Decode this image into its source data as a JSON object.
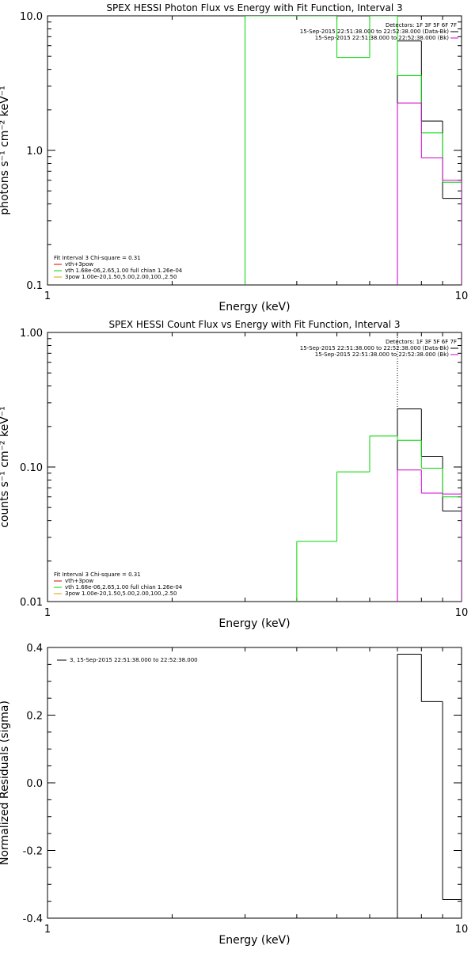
{
  "colors": {
    "background": "#ffffff",
    "axes": "#000000",
    "black": "#000000",
    "green": "#00d800",
    "magenta": "#d400d4",
    "red": "#e00000",
    "orange": "#d8a000"
  },
  "chart_data": [
    {
      "type": "line",
      "title": "SPEX HESSI Photon Flux vs Energy with Fit Function, Interval 3",
      "xlabel": "Energy (keV)",
      "ylabel": "photons s⁻¹ cm⁻² keV⁻¹",
      "xscale": "log",
      "yscale": "log",
      "xlim": [
        1,
        10
      ],
      "ylim": [
        0.1,
        10
      ],
      "x_ticks": [
        {
          "v": 1,
          "label": "1"
        },
        {
          "v": 10,
          "label": "10"
        }
      ],
      "y_ticks": [
        {
          "v": 0.1,
          "label": "0.1"
        },
        {
          "v": 1,
          "label": "1.0"
        },
        {
          "v": 10,
          "label": "10.0"
        }
      ],
      "vline": 7.0,
      "series": [
        {
          "name": "15-Sep-2015 22:51:38.000 to 22:52:38.000 (Data-Bk)",
          "color": "black",
          "edges": [
            7.0,
            8.0,
            9.0,
            10.0
          ],
          "values": [
            6.5,
            1.65,
            0.44
          ]
        },
        {
          "name": "vth 1.68e-06,2.65,1.00  full chian 1.26e-04",
          "color": "green",
          "edges": [
            3.0,
            4.0,
            5.0,
            6.0,
            7.0,
            8.0,
            9.0,
            10.0
          ],
          "values": [
            10.0,
            10.0,
            4.9,
            10.0,
            3.6,
            1.35,
            0.58
          ]
        },
        {
          "name": "15-Sep-2015 22:51:38.000 to 22:52:38.000 (Bk)",
          "color": "magenta",
          "edges": [
            7.0,
            8.0,
            9.0,
            10.0
          ],
          "values": [
            2.25,
            0.88,
            0.6
          ]
        }
      ],
      "legend_topright": {
        "header": "Detectors: 1F 3F 5F 6F 7F",
        "entries": [
          {
            "text": "15-Sep-2015 22:51:38.000 to 22:52:38.000 (Data-Bk)",
            "color": "black"
          },
          {
            "text": "15-Sep-2015 22:51:38.000 to 22:52:38.000 (Bk)",
            "color": "magenta"
          }
        ]
      },
      "legend_bottomleft": {
        "header": "Fit Interval 3   Chi-square = 0.31",
        "entries": [
          {
            "text": "vth+3pow",
            "color": "red"
          },
          {
            "text": "vth 1.68e-06,2.65,1.00  full chian 1.26e-04",
            "color": "green"
          },
          {
            "text": "3pow 1.00e-20,1.50,5.00,2.00,100.,2.50",
            "color": "orange"
          }
        ]
      }
    },
    {
      "type": "line",
      "title": "SPEX HESSI Count Flux vs Energy with Fit Function, Interval 3",
      "xlabel": "Energy (keV)",
      "ylabel": "counts s⁻¹ cm⁻² keV⁻¹",
      "xscale": "log",
      "yscale": "log",
      "xlim": [
        1,
        10
      ],
      "ylim": [
        0.01,
        1
      ],
      "x_ticks": [
        {
          "v": 1,
          "label": "1"
        },
        {
          "v": 10,
          "label": "10"
        }
      ],
      "y_ticks": [
        {
          "v": 0.01,
          "label": "0.01"
        },
        {
          "v": 0.1,
          "label": "0.10"
        },
        {
          "v": 1,
          "label": "1.00"
        }
      ],
      "vline": 7.0,
      "series": [
        {
          "name": "15-Sep-2015 22:51:38.000 to 22:52:38.000 (Data-Bk)",
          "color": "black",
          "edges": [
            7.0,
            8.0,
            9.0,
            10.0
          ],
          "values": [
            0.27,
            0.12,
            0.047
          ]
        },
        {
          "name": "vth 1.68e-06,2.65,1.00  full chian 1.26e-04",
          "color": "green",
          "edges": [
            4.0,
            5.0,
            6.0,
            7.0,
            8.0,
            9.0,
            10.0
          ],
          "values": [
            0.028,
            0.092,
            0.17,
            0.158,
            0.098,
            0.06
          ]
        },
        {
          "name": "15-Sep-2015 22:51:38.000 to 22:52:38.000 (Bk)",
          "color": "magenta",
          "edges": [
            7.0,
            8.0,
            9.0,
            10.0
          ],
          "values": [
            0.095,
            0.064,
            0.063
          ]
        }
      ],
      "legend_topright": {
        "header": "Detectors: 1F 3F 5F 6F 7F",
        "entries": [
          {
            "text": "15-Sep-2015 22:51:38.000 to 22:52:38.000 (Data-Bk)",
            "color": "black"
          },
          {
            "text": "15-Sep-2015 22:51:38.000 to 22:52:38.000 (Bk)",
            "color": "magenta"
          }
        ]
      },
      "legend_bottomleft": {
        "header": "Fit Interval 3   Chi-square = 0.31",
        "entries": [
          {
            "text": "vth+3pow",
            "color": "red"
          },
          {
            "text": "vth 1.68e-06,2.65,1.00  full chian 1.26e-04",
            "color": "green"
          },
          {
            "text": "3pow 1.00e-20,1.50,5.00,2.00,100.,2.50",
            "color": "orange"
          }
        ]
      }
    },
    {
      "type": "line",
      "title": "",
      "xlabel": "Energy (keV)",
      "ylabel": "Normalized Residuals (sigma)",
      "xscale": "log",
      "yscale": "linear",
      "xlim": [
        1,
        10
      ],
      "ylim": [
        -0.4,
        0.4
      ],
      "x_ticks": [
        {
          "v": 1,
          "label": "1"
        },
        {
          "v": 10,
          "label": "10"
        }
      ],
      "y_ticks": [
        {
          "v": -0.4,
          "label": "-0.4"
        },
        {
          "v": -0.2,
          "label": "-0.2"
        },
        {
          "v": 0,
          "label": "0.0"
        },
        {
          "v": 0.2,
          "label": "0.2"
        },
        {
          "v": 0.4,
          "label": "0.4"
        }
      ],
      "vline": null,
      "series": [
        {
          "name": "3, 15-Sep-2015 22:51:38.000 to 22:52:38.000",
          "color": "black",
          "edges": [
            7.0,
            8.0,
            9.0,
            10.0
          ],
          "values": [
            0.38,
            0.24,
            -0.345
          ]
        }
      ],
      "legend_topleft": {
        "entries": [
          {
            "text": "3, 15-Sep-2015 22:51:38.000 to 22:52:38.000",
            "color": "black"
          }
        ]
      }
    }
  ]
}
